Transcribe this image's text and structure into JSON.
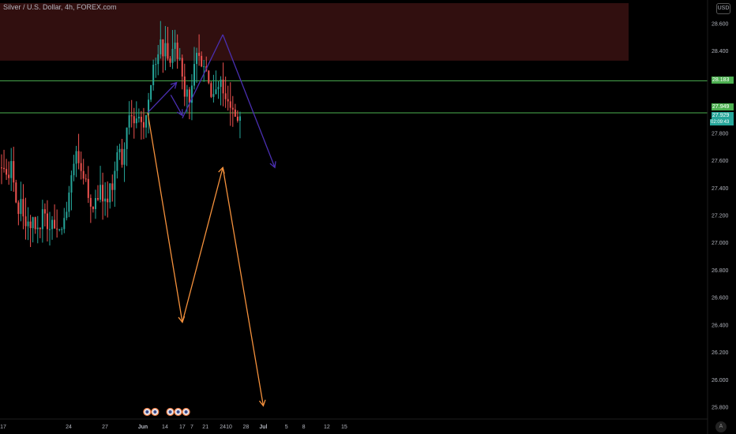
{
  "header": {
    "symbol_title": "Silver / U.S. Dollar, 4h, FOREX.com",
    "currency_button": "USD"
  },
  "price_tags": {
    "resistance_level": "28.183",
    "support_level": "27.949",
    "current_price": "27.929",
    "countdown": "02:09:43"
  },
  "auto_button": "A",
  "colors": {
    "background": "#000000",
    "zone": "#3a1212",
    "level_line": "#4caf50",
    "bull_path": "#4a2fb0",
    "bear_path": "#f5913c",
    "candle_up": "#26a69a",
    "candle_down": "#ef5350"
  },
  "chart_data": {
    "type": "candlestick",
    "title": "Silver / U.S. Dollar, 4h, FOREX.com",
    "y_axis": {
      "ticks": [
        "28.600",
        "28.400",
        "28.200",
        "28.000",
        "27.800",
        "27.600",
        "27.400",
        "27.200",
        "27.000",
        "26.800",
        "26.600",
        "26.400",
        "26.200",
        "26.000",
        "25.800"
      ],
      "range": [
        25.75,
        28.72
      ]
    },
    "x_axis": {
      "ticks": [
        "17",
        "24",
        "27",
        "Jun",
        "7",
        "10",
        "14",
        "17",
        "21",
        "24",
        "28",
        "Jul",
        "5",
        "8",
        "12",
        "15"
      ],
      "start_day": "May 17",
      "end_day": "Jul 17"
    },
    "price_range": {
      "low": 27.03,
      "high": 28.68,
      "last": 27.929
    },
    "horizontal_levels": [
      28.183,
      27.949
    ],
    "resistance_zone": {
      "from": 28.33,
      "to": 28.75
    },
    "projection_paths": [
      {
        "name": "",
        "color": "#4a2fb0",
        "points": [
          [
            "Jun 11",
            27.95
          ],
          [
            "Jun 16",
            28.17
          ],
          [
            "Jun 15",
            28.08
          ],
          [
            "Jun 17",
            27.93
          ],
          [
            "Jun 17",
            27.91
          ],
          [
            "Jun 24",
            28.52
          ],
          [
            "Jul 3",
            27.55
          ]
        ]
      },
      {
        "name": "",
        "color": "#f5913c",
        "points": [
          [
            "Jun 11",
            27.95
          ],
          [
            "Jun 17",
            26.42
          ],
          [
            "Jun 24",
            27.55
          ],
          [
            "Jul 1",
            25.81
          ]
        ]
      }
    ],
    "event_markers": [
      {
        "day": "Jun 12",
        "count": 2
      },
      {
        "day": "Jun 16",
        "count": 3
      }
    ]
  }
}
